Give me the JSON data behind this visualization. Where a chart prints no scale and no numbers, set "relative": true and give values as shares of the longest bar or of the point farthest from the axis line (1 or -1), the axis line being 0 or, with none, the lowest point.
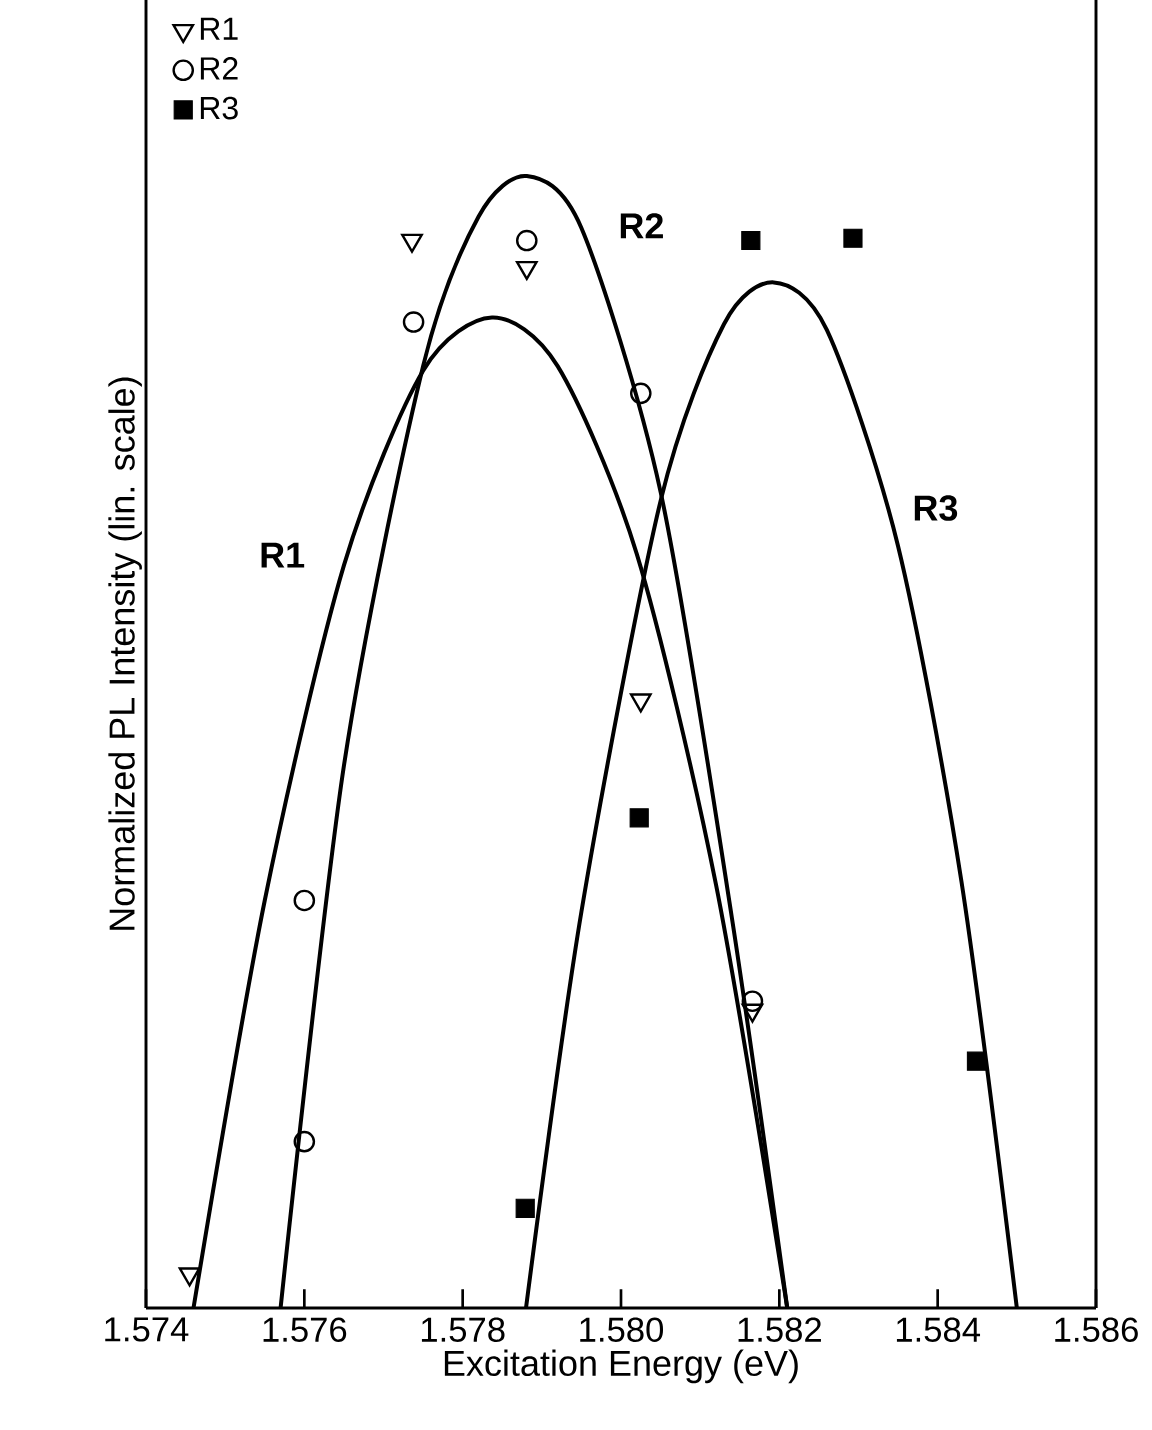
{
  "chart_data": {
    "type": "scatter",
    "relative": true,
    "xlabel": "Excitation Energy (eV)",
    "ylabel": "Normalized PL Intensity (lin. scale)",
    "xlim": [
      1.574,
      1.586
    ],
    "xticks": [
      1.574,
      1.576,
      1.578,
      {
        "value": 1.58,
        "label": "1.580"
      },
      1.582,
      1.584,
      1.586
    ],
    "legend": "top left",
    "grid": false,
    "series": [
      {
        "name": "R1",
        "marker": "triangle",
        "color": "#000000",
        "x": [
          1.57455,
          1.57736,
          1.57881,
          1.58025,
          1.58166
        ],
        "values": [
          0.03,
          0.943,
          0.919,
          0.537,
          0.263
        ]
      },
      {
        "name": "R2",
        "marker": "circle",
        "color": "#000000",
        "x": [
          1.576,
          1.576,
          1.57738,
          1.57881,
          1.58025,
          1.58166
        ],
        "values": [
          0.147,
          0.36,
          0.871,
          0.943,
          0.808,
          0.271
        ]
      },
      {
        "name": "R3",
        "marker": "square",
        "color": "#000000",
        "x": [
          1.57879,
          1.58023,
          1.58164,
          1.58293,
          1.58449
        ],
        "values": [
          0.088,
          0.433,
          0.943,
          0.945,
          0.218
        ]
      },
      {
        "name": "R1",
        "type": "line",
        "color": "#000000",
        "x": [
          1.5746,
          1.5755,
          1.5765,
          1.5775,
          1.57837,
          1.5792,
          1.5802,
          1.5812,
          1.5821
        ],
        "values": [
          0,
          0.36,
          0.656,
          0.828,
          0.875,
          0.832,
          0.666,
          0.374,
          0
        ]
      },
      {
        "name": "R2",
        "type": "line",
        "color": "#000000",
        "x": [
          1.5757,
          1.5765,
          1.5775,
          1.5782,
          1.57881,
          1.5795,
          1.5805,
          1.5814,
          1.5821
        ],
        "values": [
          0,
          0.479,
          0.832,
          0.964,
          1.0,
          0.954,
          0.721,
          0.345,
          0
        ]
      },
      {
        "name": "R3",
        "type": "line",
        "color": "#000000",
        "x": [
          1.5788,
          1.5795,
          1.5805,
          1.5813,
          1.58193,
          1.5826,
          1.5835,
          1.5843,
          1.585
        ],
        "values": [
          0,
          0.35,
          0.713,
          0.869,
          0.906,
          0.864,
          0.673,
          0.377,
          0
        ]
      }
    ]
  }
}
